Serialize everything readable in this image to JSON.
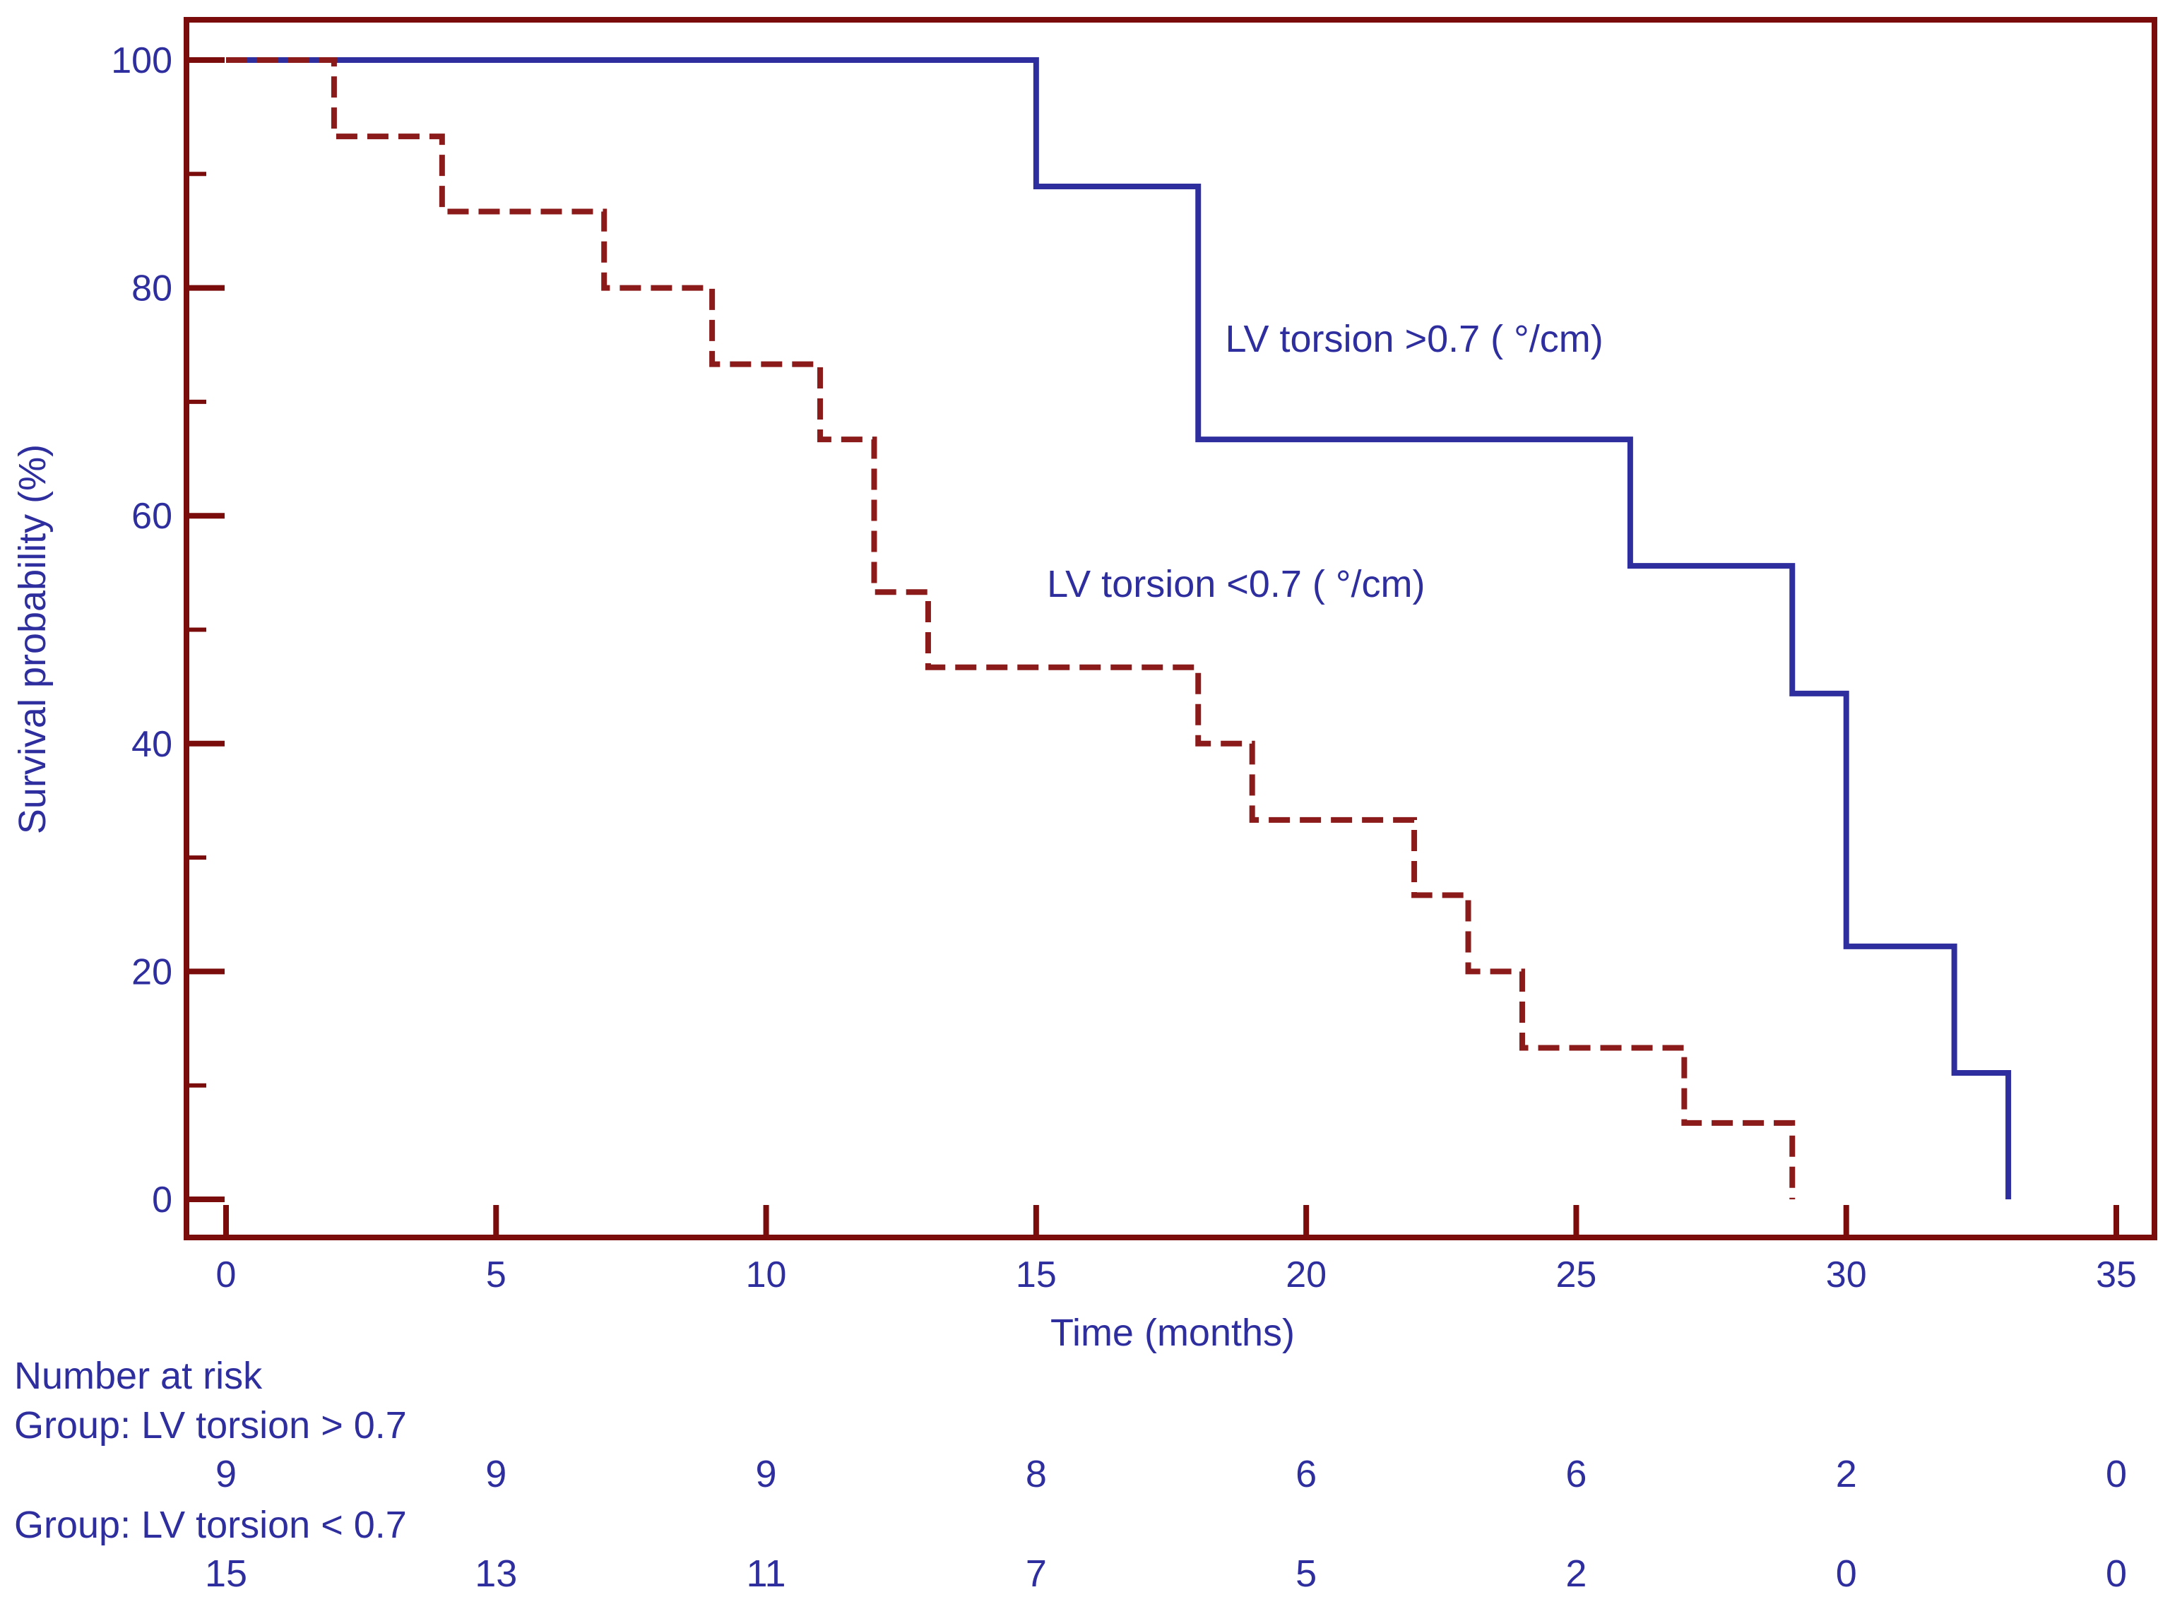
{
  "colors": {
    "frame": "#7a0c0c",
    "text": "#2e2e9e",
    "series_high": "#2e2e9e",
    "series_low": "#8b1a1a"
  },
  "chart_data": {
    "type": "line",
    "step": true,
    "xlabel": "Time (months)",
    "ylabel": "Survival probability (%)",
    "xlim": [
      0,
      35
    ],
    "ylim": [
      0,
      100
    ],
    "xticks": [
      0,
      5,
      10,
      15,
      20,
      25,
      30,
      35
    ],
    "yticks": [
      0,
      20,
      40,
      60,
      80,
      100
    ],
    "y_minor_ticks": [
      10,
      30,
      50,
      70,
      90
    ],
    "grid": false,
    "series": [
      {
        "name": "LV torsion >0.7 ( °/cm)",
        "line_style": "solid",
        "x": [
          0,
          15,
          18,
          26,
          29,
          30,
          32,
          33
        ],
        "y": [
          100,
          88.9,
          66.7,
          55.6,
          44.4,
          22.2,
          11.1,
          0
        ]
      },
      {
        "name": "LV torsion <0.7 ( °/cm)",
        "line_style": "dashed",
        "x": [
          0,
          2,
          4,
          7,
          9,
          11,
          12,
          13,
          18,
          19,
          22,
          23,
          24,
          27,
          29
        ],
        "y": [
          100,
          93.3,
          86.7,
          80,
          73.3,
          66.7,
          53.3,
          46.7,
          40,
          33.3,
          26.7,
          20,
          13.3,
          6.7,
          0
        ]
      }
    ],
    "annotations": [
      {
        "text": "LV torsion >0.7 ( °/cm)",
        "series": 0,
        "x": 18.5,
        "y": 75.5
      },
      {
        "text": "LV torsion <0.7 ( °/cm)",
        "series": 1,
        "x": 15.2,
        "y": 54
      }
    ],
    "risk_table": {
      "title": "Number at risk",
      "times": [
        0,
        5,
        10,
        15,
        20,
        25,
        30,
        35
      ],
      "groups": [
        {
          "label": "Group: LV torsion > 0.7",
          "counts": [
            9,
            9,
            9,
            8,
            6,
            6,
            2,
            0
          ]
        },
        {
          "label": "Group: LV torsion < 0.7",
          "counts": [
            15,
            13,
            11,
            7,
            5,
            2,
            0,
            0
          ]
        }
      ]
    }
  }
}
